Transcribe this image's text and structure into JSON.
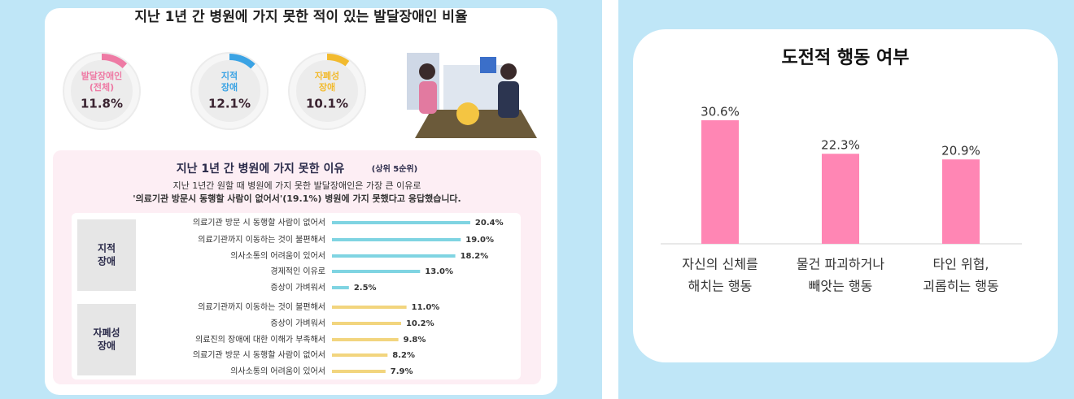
{
  "chart_data": [
    {
      "type": "donut",
      "title": "지난 1년 간 병원에 가지 못한 적이 있는 발달장애인 비율",
      "categories": [
        [
          "발달장애인",
          "(전체)"
        ],
        [
          "지적",
          "장애"
        ],
        [
          "자폐성",
          "장애"
        ]
      ],
      "values": [
        11.8,
        12.1,
        10.1
      ],
      "value_labels": [
        "11.8%",
        "12.1%",
        "10.1%"
      ],
      "colors": [
        "#ee7aa4",
        "#3ba3e4",
        "#f2ba2e"
      ]
    },
    {
      "type": "hbar",
      "title": "지난 1년 간 병원에 가지 못한 이유",
      "title_note": "(상위 5순위)",
      "subtitle": [
        "지난 1년간 원할 때 병원에 가지 못한 발달장애인은 가장 큰 이유로",
        "'의료기관 방문시 동행할 사람이 없어서'(19.1%) 병원에 가지 못했다고 응답했습니다."
      ],
      "groups": [
        {
          "name": [
            "지적",
            "장애"
          ],
          "color": "#7fd4e2",
          "categories": [
            "의료기관 방문 시 동행할 사람이 없어서",
            "의료기관까지 이동하는 것이 불편해서",
            "의사소통의 어려움이 있어서",
            "경제적인 이유로",
            "증상이 가벼워서"
          ],
          "values": [
            20.4,
            19.0,
            18.2,
            13.0,
            2.5
          ],
          "value_labels": [
            "20.4%",
            "19.0%",
            "18.2%",
            "13.0%",
            "2.5%"
          ]
        },
        {
          "name": [
            "자폐성",
            "장애"
          ],
          "color": "#f2d57e",
          "categories": [
            "의료기관까지 이동하는 것이 불편해서",
            "증상이 가벼워서",
            "의료진의 장애에 대한 이해가 부족해서",
            "의료기관 방문 시 동행할 사람이 없어서",
            "의사소통의 어려움이 있어서"
          ],
          "values": [
            11.0,
            10.2,
            9.8,
            8.2,
            7.9
          ],
          "value_labels": [
            "11.0%",
            "10.2%",
            "9.8%",
            "8.2%",
            "7.9%"
          ]
        }
      ]
    },
    {
      "type": "bar",
      "title": "도전적 행동 여부",
      "categories": [
        [
          "자신의 신체를",
          "해치는 행동"
        ],
        [
          "물건 파괴하거나",
          "빼앗는 행동"
        ],
        [
          "타인 위협,",
          "괴롭히는 행동"
        ]
      ],
      "values": [
        30.6,
        22.3,
        20.9
      ],
      "value_labels": [
        "30.6%",
        "22.3%",
        "20.9%"
      ],
      "color": "#ff86b4"
    }
  ]
}
